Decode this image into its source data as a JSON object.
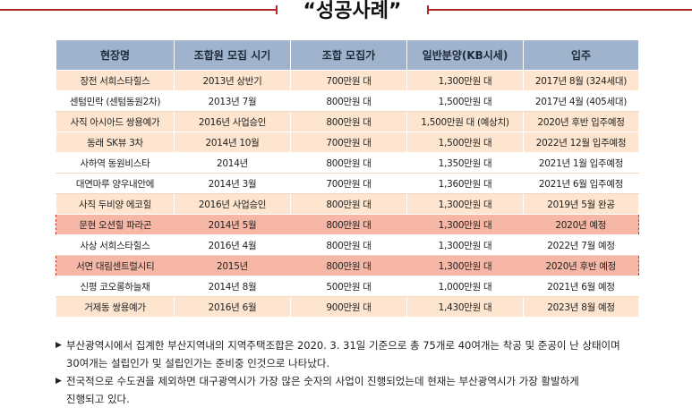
{
  "title": "“성공사례”",
  "table": {
    "headers": [
      "현장명",
      "조합원 모집 시기",
      "조합 모집가",
      "일반분양(KB시세)",
      "입주"
    ],
    "rows": [
      {
        "cells": [
          "장전 서희스타힐스",
          "2013년 상반기",
          "700만원 대",
          "1,300만원 대",
          "2017년 8월 (324세대)"
        ],
        "highlight": false
      },
      {
        "cells": [
          "센텀민락 (센텀동원2차)",
          "2013년 7월",
          "800만원 대",
          "1,500만원 대",
          "2017년 4월 (405세대)"
        ],
        "highlight": false
      },
      {
        "cells": [
          "사직 아시아드 쌍용예가",
          "2016년 사업승인",
          "800만원 대",
          "1,500만원 대 (예상치)",
          "2020년 후반 입주예정"
        ],
        "highlight": false
      },
      {
        "cells": [
          "동래 SK뷰 3차",
          "2014년 10월",
          "700만원 대",
          "1,500만원 대",
          "2022년 12월 입주예정"
        ],
        "highlight": false
      },
      {
        "cells": [
          "사하역 동원비스타",
          "2014년",
          "800만원 대",
          "1,350만원 대",
          "2021년 1월 입주예정"
        ],
        "highlight": false
      },
      {
        "cells": [
          "대연마루 양우내안에",
          "2014년 3월",
          "700만원 대",
          "1,360만원 대",
          "2021년 6월 입주예정"
        ],
        "highlight": false
      },
      {
        "cells": [
          "사직 두비양 에코힐",
          "2016년 사업승인",
          "800만원 대",
          "1,300만원 대",
          "2019년 5월 완공"
        ],
        "highlight": false
      },
      {
        "cells": [
          "문현 오션힐 파라곤",
          "2014년 5월",
          "800만원 대",
          "1,300만원 대",
          "2020년 예정"
        ],
        "highlight": true
      },
      {
        "cells": [
          "사상 서희스타힐스",
          "2016년 4월",
          "800만원 대",
          "1,300만원 대",
          "2022년 7월 예정"
        ],
        "highlight": false
      },
      {
        "cells": [
          "서면 대림센트럴시티",
          "2015년",
          "800만원 대",
          "1,300만원 대",
          "2020년 후반 예정"
        ],
        "highlight": true
      },
      {
        "cells": [
          "신평 코오롱하늘채",
          "2014년 8월",
          "500만원 대",
          "1,000만원 대",
          "2021년 6월 예정"
        ],
        "highlight": false
      },
      {
        "cells": [
          "거제동 쌍용예가",
          "2016년 6월",
          "900만원 대",
          "1,430만원 대",
          "2023년 8월 예정"
        ],
        "highlight": false
      }
    ]
  },
  "notes": [
    {
      "bullet": "▶",
      "lines": [
        "부산광역시에서 집계한 부산지역내의 지역주택조합은 2020. 3. 31일 기준으로 총 75개로 40여개는 착공 및 준공이 난 상태이며",
        "30여개는 설립인가 및 설립인가는 준비중 인것으로 나타났다."
      ]
    },
    {
      "bullet": "▶",
      "lines": [
        "전국적으로 수도권을 제외하면 대구광역시가 가장 많은 숫자의 사업이 진행되었는데 현재는 부산광역시가 가장 활발하게",
        "진행되고 있다."
      ]
    }
  ],
  "colors": {
    "accent_red": "#b5282c",
    "header_bg": "#9fb3cc",
    "row_odd_bg": "#fde5cf",
    "highlight_bg": "#f6b7a6",
    "highlight_border": "#c0392b"
  }
}
